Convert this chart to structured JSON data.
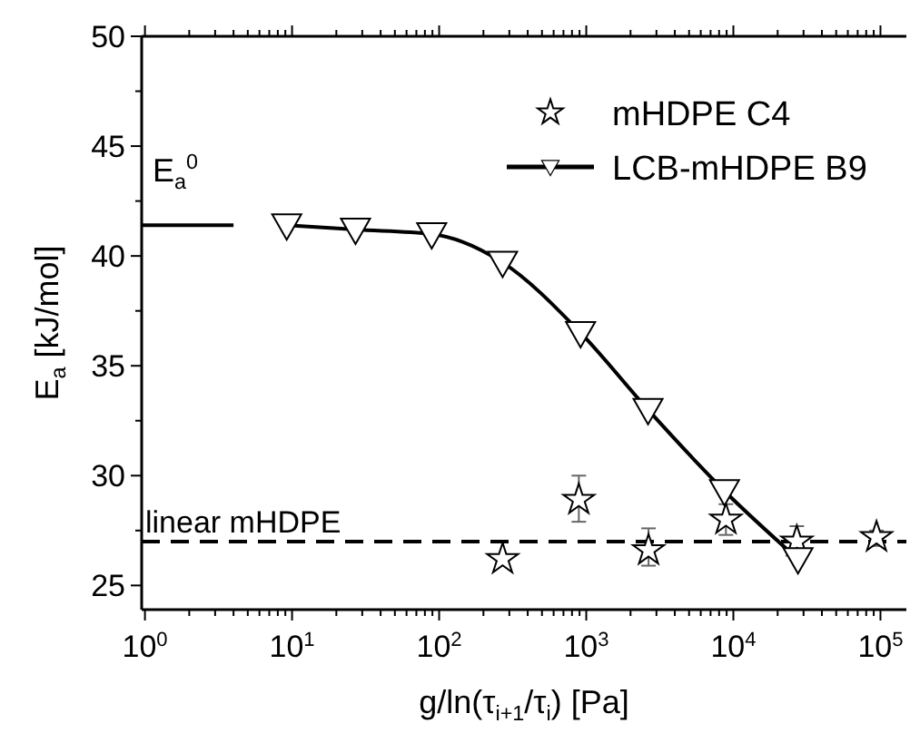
{
  "chart_data": {
    "type": "scatter",
    "xlabel": "g/ln(τ$_{i+1}$/τ$_{i}$) [Pa]",
    "ylabel": "E$_{a}$ [kJ/mol]",
    "log": "x",
    "xlim": [
      0.95,
      150000
    ],
    "ylim": [
      23.9,
      50
    ],
    "xticks": [
      {
        "value": 1,
        "label": "10$^{0}$"
      },
      {
        "value": 10,
        "label": "10$^{1}$"
      },
      {
        "value": 100,
        "label": "10$^{2}$"
      },
      {
        "value": 1000,
        "label": "10$^{3}$"
      },
      {
        "value": 10000,
        "label": "10$^{4}$"
      },
      {
        "value": 100000,
        "label": "10$^{5}$"
      }
    ],
    "yticks": [
      25,
      30,
      35,
      40,
      45,
      50
    ],
    "grid": false,
    "legend": "top right",
    "series": [
      {
        "name": "mHDPE C4",
        "marker": "star",
        "color": "#000000",
        "x": [
          270,
          890,
          2650,
          8900,
          27000,
          94000
        ],
        "values": [
          26.2,
          28.9,
          26.6,
          28.0,
          27.0,
          27.2
        ],
        "errors": [
          null,
          [
            27.9,
            30.0
          ],
          [
            25.9,
            27.6
          ],
          [
            27.3,
            28.7
          ],
          [
            26.5,
            27.7
          ],
          [
            26.8,
            27.5
          ]
        ]
      },
      {
        "name": "LCB-mHDPE B9",
        "type": "line",
        "marker": "triangle",
        "line_style": "solid",
        "color": "#000000",
        "x": [
          9.2,
          27,
          89,
          270,
          915,
          2630,
          8700,
          27500
        ],
        "values": [
          41.4,
          41.2,
          41.0,
          39.7,
          36.5,
          33.0,
          29.3,
          26.2
        ]
      },
      {
        "type": "line",
        "marker": "none",
        "line_style": "solid",
        "color": "#000000",
        "x": [
          0.95,
          4
        ],
        "values": [
          41.4,
          41.4
        ]
      }
    ],
    "ref_lines": [
      {
        "axis": "y",
        "value": 27,
        "label": "linear mHDPE",
        "line_style": "dashed",
        "color": "#000000"
      }
    ],
    "annotations": [
      "E$_{a}$$^{0}$"
    ]
  }
}
